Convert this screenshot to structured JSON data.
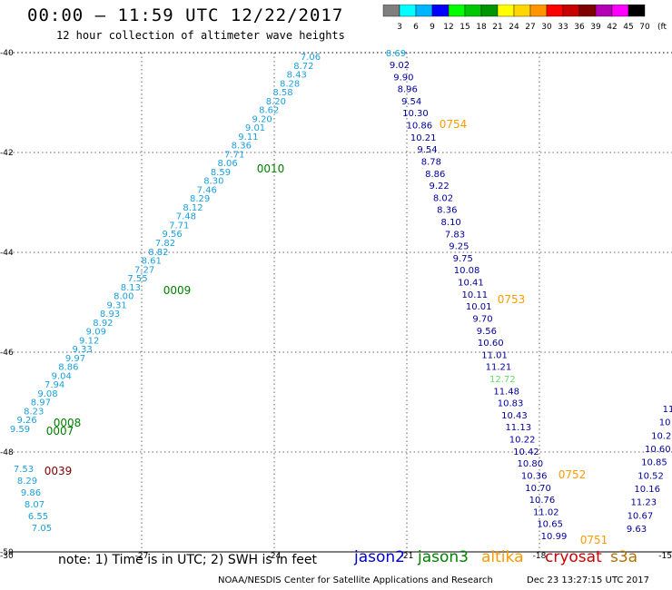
{
  "header": {
    "title": "00:00 – 11:59 UTC 12/22/2017",
    "subtitle": "12 hour collection of altimeter wave heights"
  },
  "colorbar": {
    "unit": "(ft)",
    "labels": [
      "3",
      "6",
      "9",
      "12",
      "15",
      "18",
      "21",
      "24",
      "27",
      "30",
      "33",
      "36",
      "39",
      "42",
      "45",
      "70"
    ],
    "colors": [
      "#7f7f7f",
      "#00ffff",
      "#00b4ff",
      "#0000ff",
      "#00ff00",
      "#00c800",
      "#009600",
      "#ffff00",
      "#ffd700",
      "#ff9600",
      "#ff0000",
      "#c80000",
      "#7f0000",
      "#b400b4",
      "#ff00ff",
      "#000000"
    ]
  },
  "footer": {
    "note": "note: 1) Time is in UTC; 2) SWH is in feet",
    "credit": "NOAA/NESDIS Center for Satellite Applications and Research",
    "timestamp": "Dec 23 13:27:15 UTC 2017"
  },
  "satellites": [
    {
      "name": "jason2",
      "color": "#0000cc"
    },
    {
      "name": "jason3",
      "color": "#008000"
    },
    {
      "name": "altika",
      "color": "#ff9900"
    },
    {
      "name": "cryosat",
      "color": "#cc0000"
    },
    {
      "name": "s3a",
      "color": "#b07000"
    }
  ],
  "chart_data": {
    "type": "scatter",
    "xlim": [
      -30,
      -15
    ],
    "ylim": [
      -50,
      -40
    ],
    "x_ticks": [
      -30,
      -27,
      -24,
      -21,
      -18,
      -15
    ],
    "x_tick_labels": [
      "-30",
      "-27",
      "-24",
      "-21",
      "-18",
      "-15"
    ],
    "y_ticks": [
      -40,
      -42,
      -44,
      -46,
      -48,
      -50
    ],
    "y_tick_labels": [
      "-40",
      "-42",
      "-44",
      "-46",
      "-48",
      "-50"
    ],
    "grid": true,
    "tracks": [
      {
        "satellite": "jason3",
        "color": "#1aa0dc",
        "values": [
          "7.06",
          "8.72",
          "8.43",
          "8.28",
          "8.58",
          "8.20",
          "8.62",
          "9.20",
          "9.01",
          "9.11",
          "8.36",
          "7.71",
          "8.06",
          "8.59",
          "8.30",
          "7.46",
          "8.29",
          "8.12",
          "7.48",
          "7.71",
          "9.56",
          "7.82",
          "8.82",
          "8.61",
          "7.27",
          "7.55",
          "8.13",
          "8.00",
          "9.31",
          "8.93",
          "8.92",
          "9.09",
          "9.12",
          "9.33",
          "9.97",
          "8.86",
          "9.04",
          "7.94",
          "9.08",
          "8.97",
          "8.23",
          "9.26",
          "9.59"
        ]
      },
      {
        "satellite": "jason3",
        "color": "#1aa0dc",
        "values": [
          "7.53",
          "8.29",
          "9.86",
          "8.07",
          "6.55",
          "7.05"
        ]
      },
      {
        "satellite": "jason2",
        "color": "#1aa0dc",
        "values": [
          "8.69"
        ]
      },
      {
        "satellite": "jason2",
        "color": "#000099",
        "values": [
          "9.02",
          "9.90",
          "8.96",
          "9.54",
          "10.30",
          "10.86",
          "10.21",
          "9.54",
          "8.78",
          "8.86",
          "9.22",
          "8.02",
          "8.36",
          "8.10",
          "7.83",
          "9.25",
          "9.75",
          "10.08",
          "10.41",
          "10.11",
          "10.01",
          "9.70",
          "9.56",
          "10.60",
          "11.01",
          "11.21",
          "12.72",
          "11.48",
          "10.83",
          "10.43",
          "11.13",
          "10.22",
          "10.42",
          "10.80",
          "10.36",
          "10.70",
          "10.76",
          "11.02",
          "10.65",
          "10.99"
        ]
      },
      {
        "satellite": "jason2",
        "color": "#000099",
        "values": [
          "11",
          "10",
          "10.2",
          "10.60",
          "10.85",
          "10.52",
          "10.16",
          "11.23",
          "10.67",
          "9.63"
        ]
      }
    ],
    "time_labels": [
      {
        "text": "0010",
        "satellite": "jason3",
        "color": "#008000"
      },
      {
        "text": "0009",
        "satellite": "jason3",
        "color": "#008000"
      },
      {
        "text": "0008",
        "satellite": "jason3",
        "color": "#008000"
      },
      {
        "text": "0007",
        "satellite": "jason3",
        "color": "#008000"
      },
      {
        "text": "0039",
        "satellite": "cryosat",
        "color": "#800000"
      },
      {
        "text": "0754",
        "satellite": "altika",
        "color": "#ff9900"
      },
      {
        "text": "0753",
        "satellite": "altika",
        "color": "#ff9900"
      },
      {
        "text": "0752",
        "satellite": "altika",
        "color": "#ff9900"
      },
      {
        "text": "0751",
        "satellite": "altika",
        "color": "#ff9900"
      }
    ]
  }
}
